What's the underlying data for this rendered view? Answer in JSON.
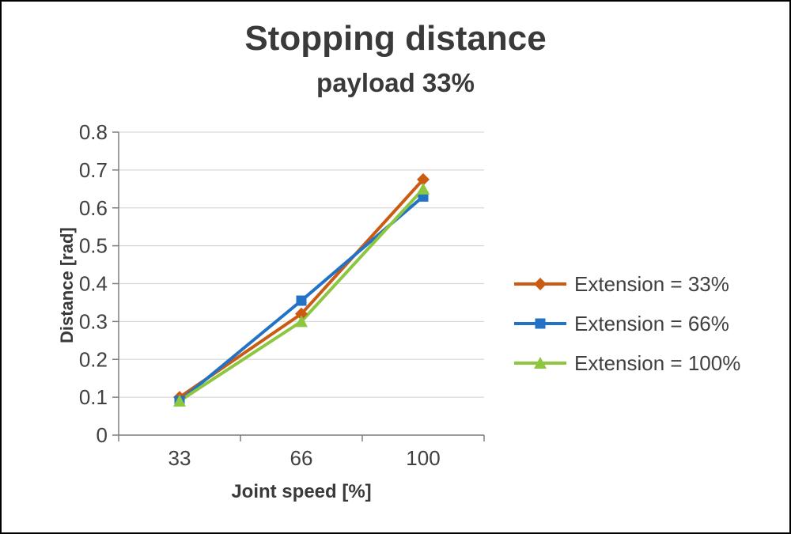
{
  "chart_data": {
    "type": "line",
    "title": "Stopping distance",
    "subtitle": "payload 33%",
    "xlabel": "Joint speed [%]",
    "ylabel": "Distance [rad]",
    "categories": [
      "33",
      "66",
      "100"
    ],
    "series": [
      {
        "name": "Extension = 33%",
        "color": "#cc5a13",
        "marker": "diamond",
        "values": [
          0.1,
          0.32,
          0.675
        ]
      },
      {
        "name": "Extension = 66%",
        "color": "#2272c5",
        "marker": "square",
        "values": [
          0.09,
          0.355,
          0.63
        ]
      },
      {
        "name": "Extension = 100%",
        "color": "#8dc63f",
        "marker": "triangle",
        "values": [
          0.09,
          0.3,
          0.65
        ]
      }
    ],
    "ylim": [
      0,
      0.8
    ],
    "ytick_step": 0.1,
    "grid": true,
    "legend_position": "right",
    "colors": {
      "gridline": "#d9d9d9",
      "axis": "#7f7f7f",
      "tick_text": "#404040"
    }
  }
}
